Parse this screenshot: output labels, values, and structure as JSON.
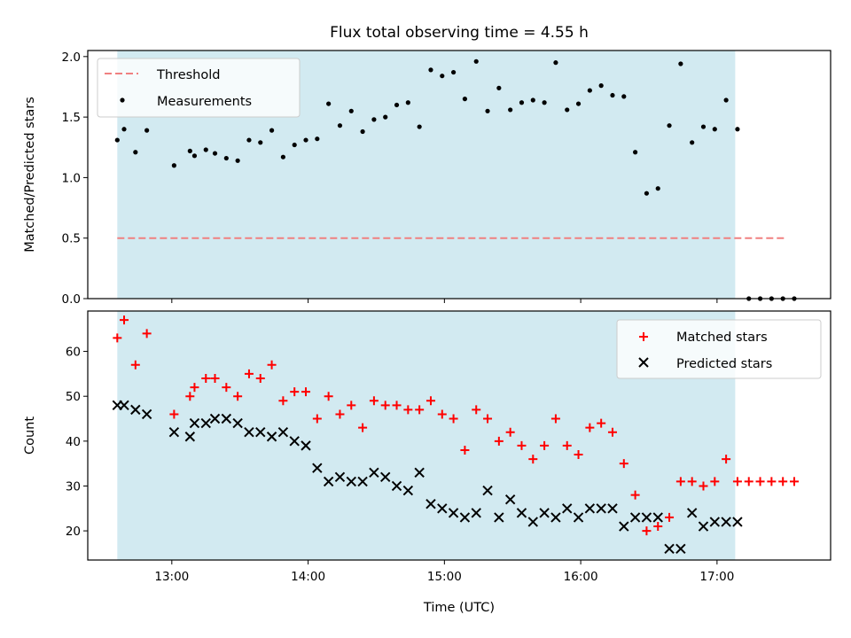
{
  "title": "Flux total observing time = 4.55 h",
  "colors": {
    "shade": "#add8e6",
    "threshold": "#f08080",
    "matched": "#ff0000",
    "predicted": "#000000",
    "measurement": "#000000"
  },
  "chart_data": [
    {
      "type": "scatter",
      "ylabel": "Matched/Predicted stars",
      "xlim": [
        "12:23",
        "17:50"
      ],
      "ylim": [
        0,
        2.05
      ],
      "yticks": [
        "0.0",
        "0.5",
        "1.0",
        "1.5",
        "2.0"
      ],
      "xticks": [
        "13:00",
        "14:00",
        "15:00",
        "16:00",
        "17:00"
      ],
      "observing_window": [
        "12:36",
        "17:08"
      ],
      "legend": {
        "position": "top-left",
        "entries": [
          "Threshold",
          "Measurements"
        ]
      },
      "threshold": {
        "name": "Threshold",
        "value": 0.5,
        "x": [
          "12:36",
          "17:31"
        ]
      },
      "series": [
        {
          "name": "Measurements",
          "x": [
            "12:36",
            "12:39",
            "12:44",
            "12:49",
            "13:01",
            "13:08",
            "13:10",
            "13:15",
            "13:19",
            "13:24",
            "13:29",
            "13:34",
            "13:39",
            "13:44",
            "13:49",
            "13:54",
            "13:59",
            "14:04",
            "14:09",
            "14:14",
            "14:19",
            "14:24",
            "14:29",
            "14:34",
            "14:39",
            "14:44",
            "14:49",
            "14:54",
            "14:59",
            "15:04",
            "15:09",
            "15:14",
            "15:19",
            "15:24",
            "15:29",
            "15:34",
            "15:39",
            "15:44",
            "15:49",
            "15:54",
            "15:59",
            "16:04",
            "16:09",
            "16:14",
            "16:19",
            "16:24",
            "16:29",
            "16:34",
            "16:39",
            "16:44",
            "16:49",
            "16:54",
            "16:59",
            "17:04",
            "17:09",
            "17:14",
            "17:19",
            "17:24",
            "17:29",
            "17:34"
          ],
          "values": [
            1.31,
            1.4,
            1.21,
            1.39,
            1.1,
            1.22,
            1.18,
            1.23,
            1.2,
            1.16,
            1.14,
            1.31,
            1.29,
            1.39,
            1.17,
            1.27,
            1.31,
            1.32,
            1.61,
            1.43,
            1.55,
            1.38,
            1.48,
            1.5,
            1.6,
            1.62,
            1.42,
            1.89,
            1.84,
            1.87,
            1.65,
            1.96,
            1.55,
            1.74,
            1.56,
            1.62,
            1.64,
            1.62,
            1.95,
            1.56,
            1.61,
            1.72,
            1.76,
            1.68,
            1.67,
            1.21,
            0.87,
            0.91,
            1.43,
            1.94,
            1.29,
            1.42,
            1.4,
            1.64,
            1.4,
            0.0,
            0.0,
            0.0,
            0.0,
            0.0
          ]
        }
      ]
    },
    {
      "type": "scatter",
      "ylabel": "Count",
      "xlabel": "Time (UTC)",
      "xlim": [
        "12:23",
        "17:50"
      ],
      "ylim": [
        13.5,
        69
      ],
      "yticks": [
        "20",
        "30",
        "40",
        "50",
        "60"
      ],
      "xticks": [
        "13:00",
        "14:00",
        "15:00",
        "16:00",
        "17:00"
      ],
      "observing_window": [
        "12:36",
        "17:08"
      ],
      "legend": {
        "position": "top-right",
        "entries": [
          "Matched stars",
          "Predicted stars"
        ]
      },
      "series": [
        {
          "name": "Matched stars",
          "x": [
            "12:36",
            "12:39",
            "12:44",
            "12:49",
            "13:01",
            "13:08",
            "13:10",
            "13:15",
            "13:19",
            "13:24",
            "13:29",
            "13:34",
            "13:39",
            "13:44",
            "13:49",
            "13:54",
            "13:59",
            "14:04",
            "14:09",
            "14:14",
            "14:19",
            "14:24",
            "14:29",
            "14:34",
            "14:39",
            "14:44",
            "14:49",
            "14:54",
            "14:59",
            "15:04",
            "15:09",
            "15:14",
            "15:19",
            "15:24",
            "15:29",
            "15:34",
            "15:39",
            "15:44",
            "15:49",
            "15:54",
            "15:59",
            "16:04",
            "16:09",
            "16:14",
            "16:19",
            "16:24",
            "16:29",
            "16:34",
            "16:39",
            "16:44",
            "16:49",
            "16:54",
            "16:59",
            "17:04",
            "17:09",
            "17:14",
            "17:19",
            "17:24",
            "17:29",
            "17:34"
          ],
          "values": [
            63,
            67,
            57,
            64,
            46,
            50,
            52,
            54,
            54,
            52,
            50,
            55,
            54,
            57,
            49,
            51,
            51,
            45,
            50,
            46,
            48,
            43,
            49,
            48,
            48,
            47,
            47,
            49,
            46,
            45,
            38,
            47,
            45,
            40,
            42,
            39,
            36,
            39,
            45,
            39,
            37,
            43,
            44,
            42,
            35,
            28,
            20,
            21,
            23,
            31,
            31,
            30,
            31,
            36,
            31,
            31,
            31,
            31,
            31,
            31
          ]
        },
        {
          "name": "Predicted stars",
          "x": [
            "12:36",
            "12:39",
            "12:44",
            "12:49",
            "13:01",
            "13:08",
            "13:10",
            "13:15",
            "13:19",
            "13:24",
            "13:29",
            "13:34",
            "13:39",
            "13:44",
            "13:49",
            "13:54",
            "13:59",
            "14:04",
            "14:09",
            "14:14",
            "14:19",
            "14:24",
            "14:29",
            "14:34",
            "14:39",
            "14:44",
            "14:49",
            "14:54",
            "14:59",
            "15:04",
            "15:09",
            "15:14",
            "15:19",
            "15:24",
            "15:29",
            "15:34",
            "15:39",
            "15:44",
            "15:49",
            "15:54",
            "15:59",
            "16:04",
            "16:09",
            "16:14",
            "16:19",
            "16:24",
            "16:29",
            "16:34",
            "16:39",
            "16:44",
            "16:49",
            "16:54",
            "16:59",
            "17:04",
            "17:09"
          ],
          "values": [
            48,
            48,
            47,
            46,
            42,
            41,
            44,
            44,
            45,
            45,
            44,
            42,
            42,
            41,
            42,
            40,
            39,
            34,
            31,
            32,
            31,
            31,
            33,
            32,
            30,
            29,
            33,
            26,
            25,
            24,
            23,
            24,
            29,
            23,
            27,
            24,
            22,
            24,
            23,
            25,
            23,
            25,
            25,
            25,
            21,
            23,
            23,
            23,
            16,
            16,
            24,
            21,
            22,
            22,
            22
          ]
        }
      ]
    }
  ]
}
